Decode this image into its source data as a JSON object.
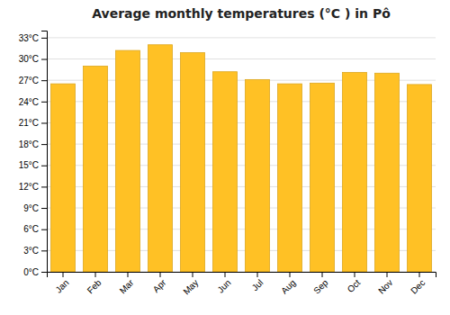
{
  "chart_data": {
    "type": "bar",
    "title": "Average monthly temperatures (°C ) in Pô",
    "categories": [
      "Jan",
      "Feb",
      "Mar",
      "Apr",
      "May",
      "Jun",
      "Jul",
      "Aug",
      "Sep",
      "Oct",
      "Nov",
      "Dec"
    ],
    "values": [
      26.5,
      29.0,
      31.2,
      32.0,
      30.9,
      28.2,
      27.1,
      26.5,
      26.6,
      28.1,
      28.0,
      26.4
    ],
    "color": "#FFC125",
    "ylim": [
      0,
      34
    ],
    "yticks": [
      {
        "value": 0,
        "label": "0°C"
      },
      {
        "value": 3,
        "label": "3°C"
      },
      {
        "value": 6,
        "label": "6°C"
      },
      {
        "value": 9,
        "label": "9°C"
      },
      {
        "value": 12,
        "label": "12°C"
      },
      {
        "value": 15,
        "label": "15°C"
      },
      {
        "value": 18,
        "label": "18°C"
      },
      {
        "value": 21,
        "label": "21°C"
      },
      {
        "value": 24,
        "label": "24°C"
      },
      {
        "value": 27,
        "label": "27°C"
      },
      {
        "value": 30,
        "label": "30°C"
      },
      {
        "value": 33,
        "label": "33°C"
      }
    ],
    "grid": true
  }
}
